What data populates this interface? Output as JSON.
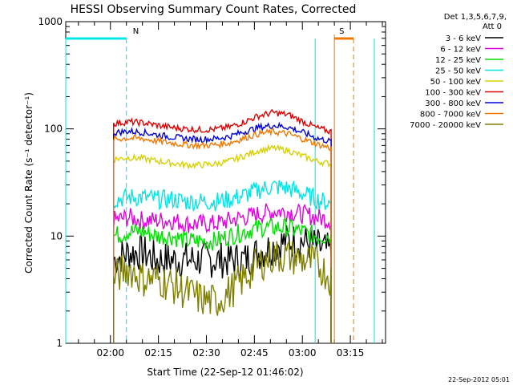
{
  "chart_data": {
    "type": "line",
    "title": "HESSI Observing Summary Count Rates, Corrected",
    "xlabel": "Start Time (22-Sep-12 01:46:02)",
    "ylabel": "Corrected Count Rate (s⁻¹ detector⁻¹)",
    "yscale": "log",
    "xlim": [
      "01:46:02",
      "03:26:00"
    ],
    "ylim": [
      1,
      1000
    ],
    "xticks": [
      "02:00",
      "02:15",
      "02:30",
      "02:45",
      "03:00",
      "03:15"
    ],
    "yticks": [
      "1",
      "10",
      "100",
      "1000"
    ],
    "legend_title": [
      "Det 1,3,5,6,7,9,",
      "Att 0"
    ],
    "legend_position": "right",
    "footer": "22-Sep-2012 05:01",
    "markers": [
      {
        "label": "N",
        "color": "#00e5e5",
        "time_range": [
          "01:46:02",
          "02:05:00"
        ],
        "dashed_line": "02:05:00"
      },
      {
        "label": "S",
        "color": "#f07800",
        "time_range": [
          "03:10:00",
          "03:16:00"
        ],
        "dashed_line": "03:16:00"
      }
    ],
    "night_lines": [
      "03:04:00",
      "03:22:30"
    ],
    "series": [
      {
        "name": "3 - 6 keV",
        "color": "#000000",
        "values": [
          6,
          7,
          7,
          6,
          6,
          6,
          6,
          6,
          6,
          6,
          7,
          8,
          9,
          9,
          8,
          7
        ]
      },
      {
        "name": "6 - 12 keV",
        "color": "#e000e0",
        "values": [
          14,
          15,
          14,
          14,
          14,
          13,
          13,
          13,
          14,
          15,
          16,
          17,
          17,
          16,
          15,
          14
        ]
      },
      {
        "name": "12 - 25 keV",
        "color": "#00e000",
        "values": [
          10,
          11,
          11,
          10,
          10,
          9,
          9,
          9,
          10,
          11,
          12,
          12,
          12,
          11,
          10,
          10
        ]
      },
      {
        "name": "25 - 50 keV",
        "color": "#00e5e5",
        "values": [
          22,
          23,
          23,
          22,
          22,
          21,
          21,
          21,
          22,
          24,
          27,
          29,
          28,
          25,
          22,
          20
        ]
      },
      {
        "name": "50 - 100 keV",
        "color": "#d8d000",
        "values": [
          52,
          54,
          53,
          50,
          48,
          46,
          46,
          47,
          50,
          56,
          63,
          66,
          63,
          56,
          50,
          47
        ]
      },
      {
        "name": "100 - 300 keV",
        "color": "#e00000",
        "values": [
          112,
          116,
          114,
          108,
          103,
          100,
          98,
          99,
          104,
          116,
          132,
          142,
          136,
          118,
          102,
          94
        ]
      },
      {
        "name": "300 - 800 keV",
        "color": "#0000e0",
        "values": [
          92,
          95,
          93,
          88,
          84,
          81,
          80,
          81,
          85,
          94,
          103,
          108,
          104,
          93,
          82,
          76
        ]
      },
      {
        "name": "800 - 7000 keV",
        "color": "#f07800",
        "values": [
          80,
          82,
          81,
          77,
          74,
          71,
          70,
          71,
          74,
          82,
          90,
          94,
          90,
          81,
          72,
          66
        ]
      },
      {
        "name": "7000 - 20000 keV",
        "color": "#808000",
        "values": [
          4,
          5,
          4,
          4,
          3.5,
          3,
          2.6,
          2.4,
          3,
          4,
          5.5,
          6.5,
          6.5,
          6,
          5.5,
          4
        ]
      }
    ]
  }
}
